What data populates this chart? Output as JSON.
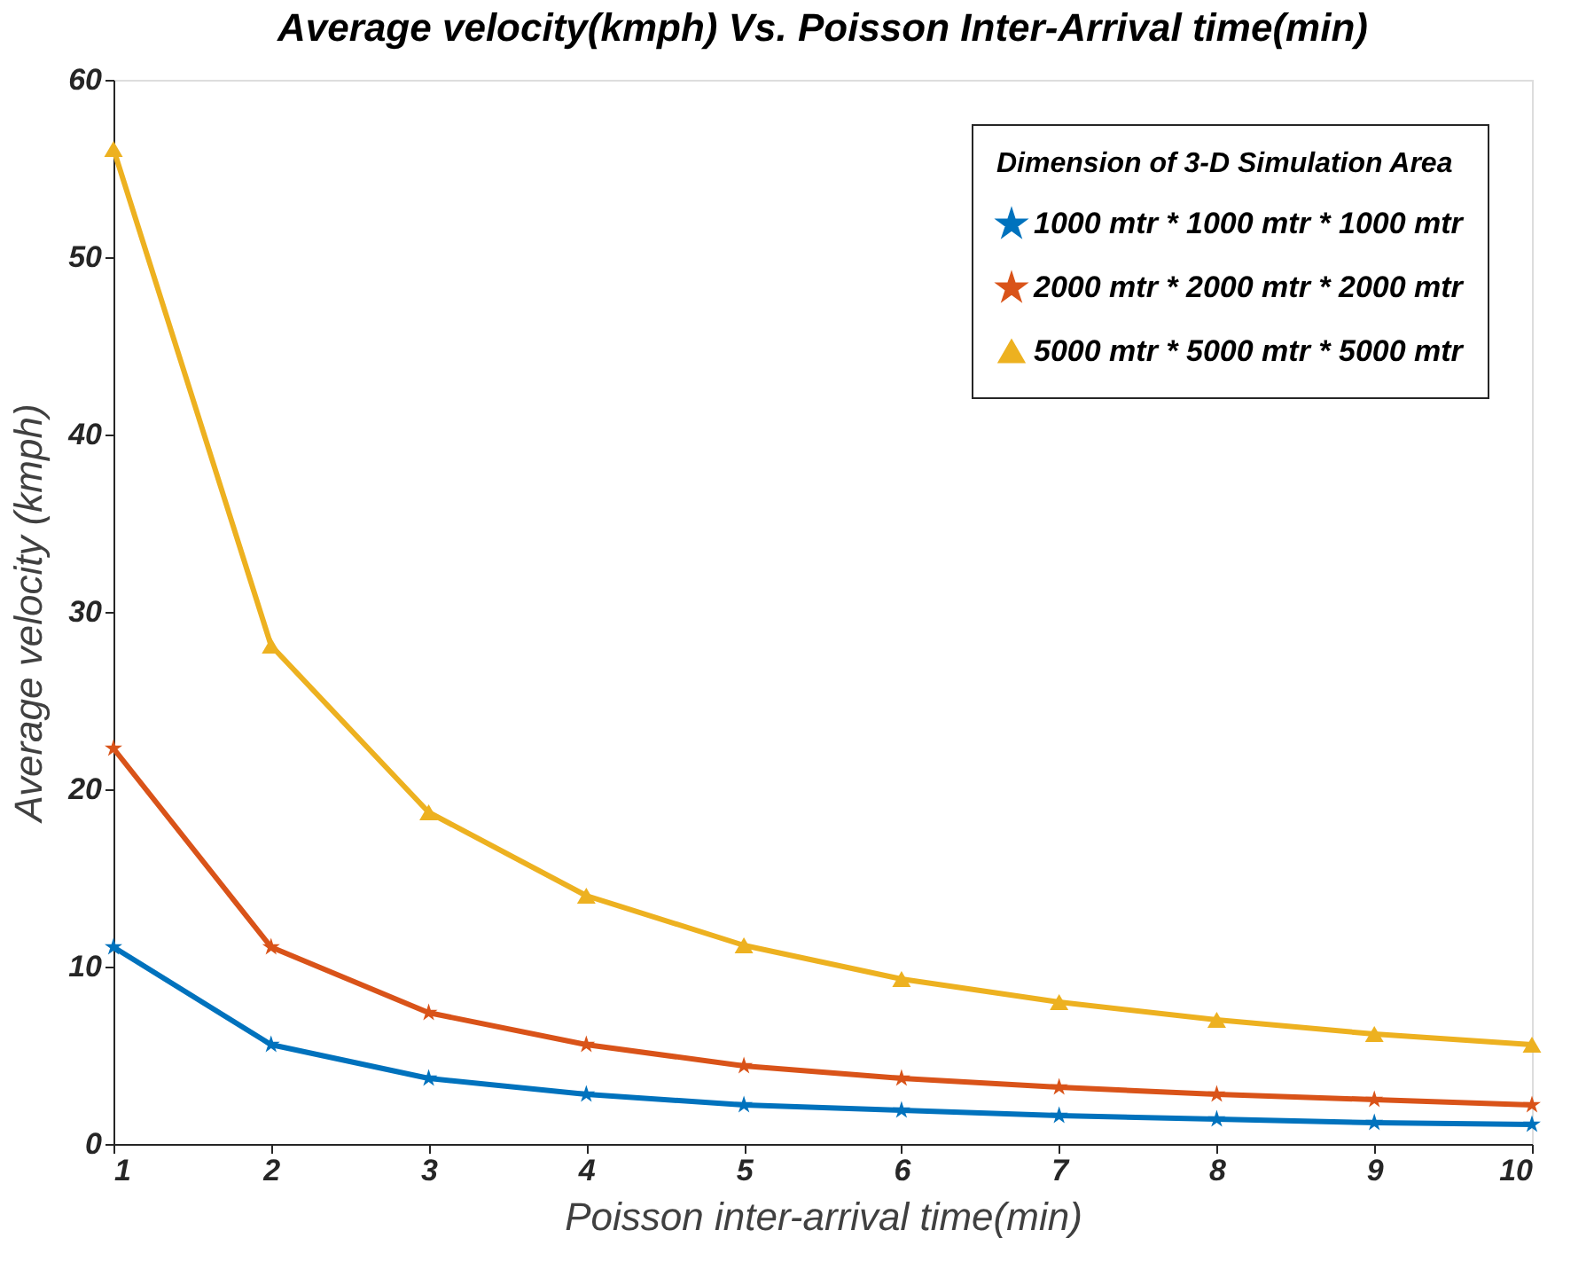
{
  "chart_data": {
    "type": "line",
    "title": "Average velocity(kmph) Vs. Poisson Inter-Arrival time(min)",
    "xlabel": "Poisson inter-arrival time(min)",
    "ylabel": "Average velocity (kmph)",
    "legend_title": "Dimension of 3-D Simulation Area",
    "x": [
      1,
      2,
      3,
      4,
      5,
      6,
      7,
      8,
      9,
      10
    ],
    "series": [
      {
        "name": "1000 mtr * 1000 mtr * 1000 mtr",
        "color": "#0072bd",
        "marker": "star",
        "values": [
          11.1,
          5.6,
          3.7,
          2.8,
          2.2,
          1.9,
          1.6,
          1.4,
          1.2,
          1.1
        ]
      },
      {
        "name": "2000 mtr * 2000 mtr * 2000 mtr",
        "color": "#d95319",
        "marker": "star",
        "values": [
          22.3,
          11.1,
          7.4,
          5.6,
          4.4,
          3.7,
          3.2,
          2.8,
          2.5,
          2.2
        ]
      },
      {
        "name": "5000 mtr * 5000 mtr * 5000 mtr",
        "color": "#edb120",
        "marker": "triangle",
        "values": [
          56.1,
          28.1,
          18.7,
          14.0,
          11.2,
          9.3,
          8.0,
          7.0,
          6.2,
          5.6
        ]
      }
    ],
    "xlim": [
      1,
      10
    ],
    "xticks": [
      1,
      2,
      3,
      4,
      5,
      6,
      7,
      8,
      9,
      10
    ],
    "ylim": [
      0,
      60
    ],
    "yticks": [
      0,
      10,
      20,
      30,
      40,
      50,
      60
    ],
    "grid": false,
    "legend": "top right",
    "line_style": "solid"
  }
}
